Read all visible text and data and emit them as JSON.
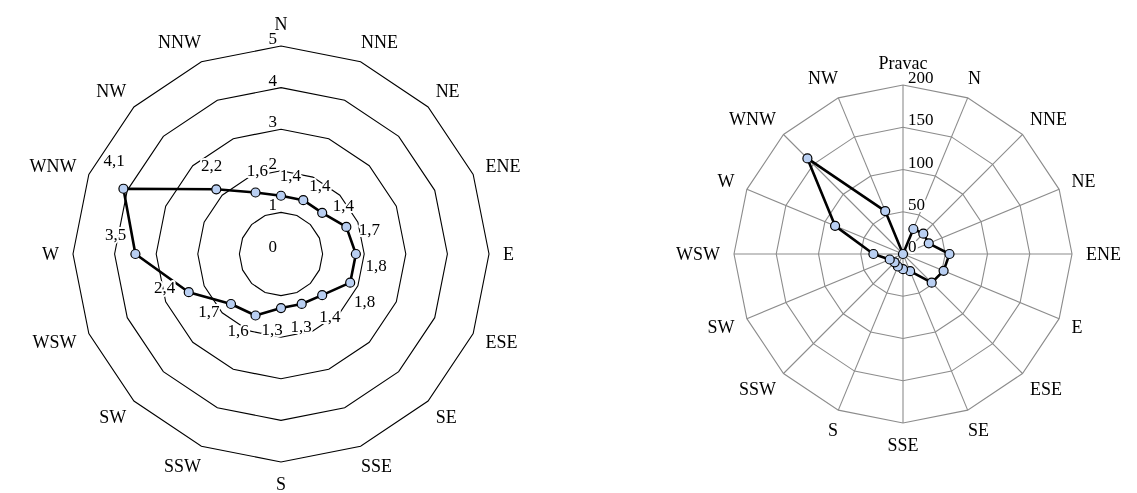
{
  "chart_data": [
    {
      "type": "radar",
      "categories": [
        "N",
        "NNE",
        "NE",
        "ENE",
        "E",
        "ESE",
        "SE",
        "SSE",
        "S",
        "SSW",
        "SW",
        "WSW",
        "W",
        "WNW",
        "NW",
        "NNW"
      ],
      "ylim": [
        0,
        5
      ],
      "yticks": [
        0,
        1,
        2,
        3,
        4,
        5
      ],
      "grid": "y",
      "marker": "circle",
      "line_style": "solid",
      "series": [
        {
          "color": "#000000",
          "values": [
            1.4,
            1.4,
            1.4,
            1.7,
            1.8,
            1.8,
            1.4,
            1.3,
            1.3,
            1.6,
            1.7,
            2.4,
            3.5,
            4.1,
            2.2,
            1.6
          ],
          "value_labels": [
            "1,4",
            "1,4",
            "1,4",
            "1,7",
            "1,8",
            "1,8",
            "1,4",
            "1,3",
            "1,3",
            "1,6",
            "1,7",
            "2,4",
            "3,5",
            "4,1",
            "2,2",
            "1,6"
          ]
        }
      ]
    },
    {
      "type": "radar",
      "categories": [
        "Pravac",
        "N",
        "NNE",
        "NE",
        "ENE",
        "E",
        "ESE",
        "SE",
        "SSE",
        "S",
        "SSW",
        "SW",
        "WSW",
        "W",
        "WNW",
        "NW"
      ],
      "ylim": [
        0,
        200
      ],
      "yticks": [
        0,
        50,
        100,
        150,
        200
      ],
      "grid": true,
      "marker": "circle",
      "line_style": "solid",
      "series": [
        {
          "color": "#000000",
          "values": [
            0,
            32,
            34,
            33,
            55,
            52,
            48,
            22,
            18,
            16,
            14,
            17,
            35,
            87,
            160,
            55
          ]
        }
      ]
    }
  ]
}
